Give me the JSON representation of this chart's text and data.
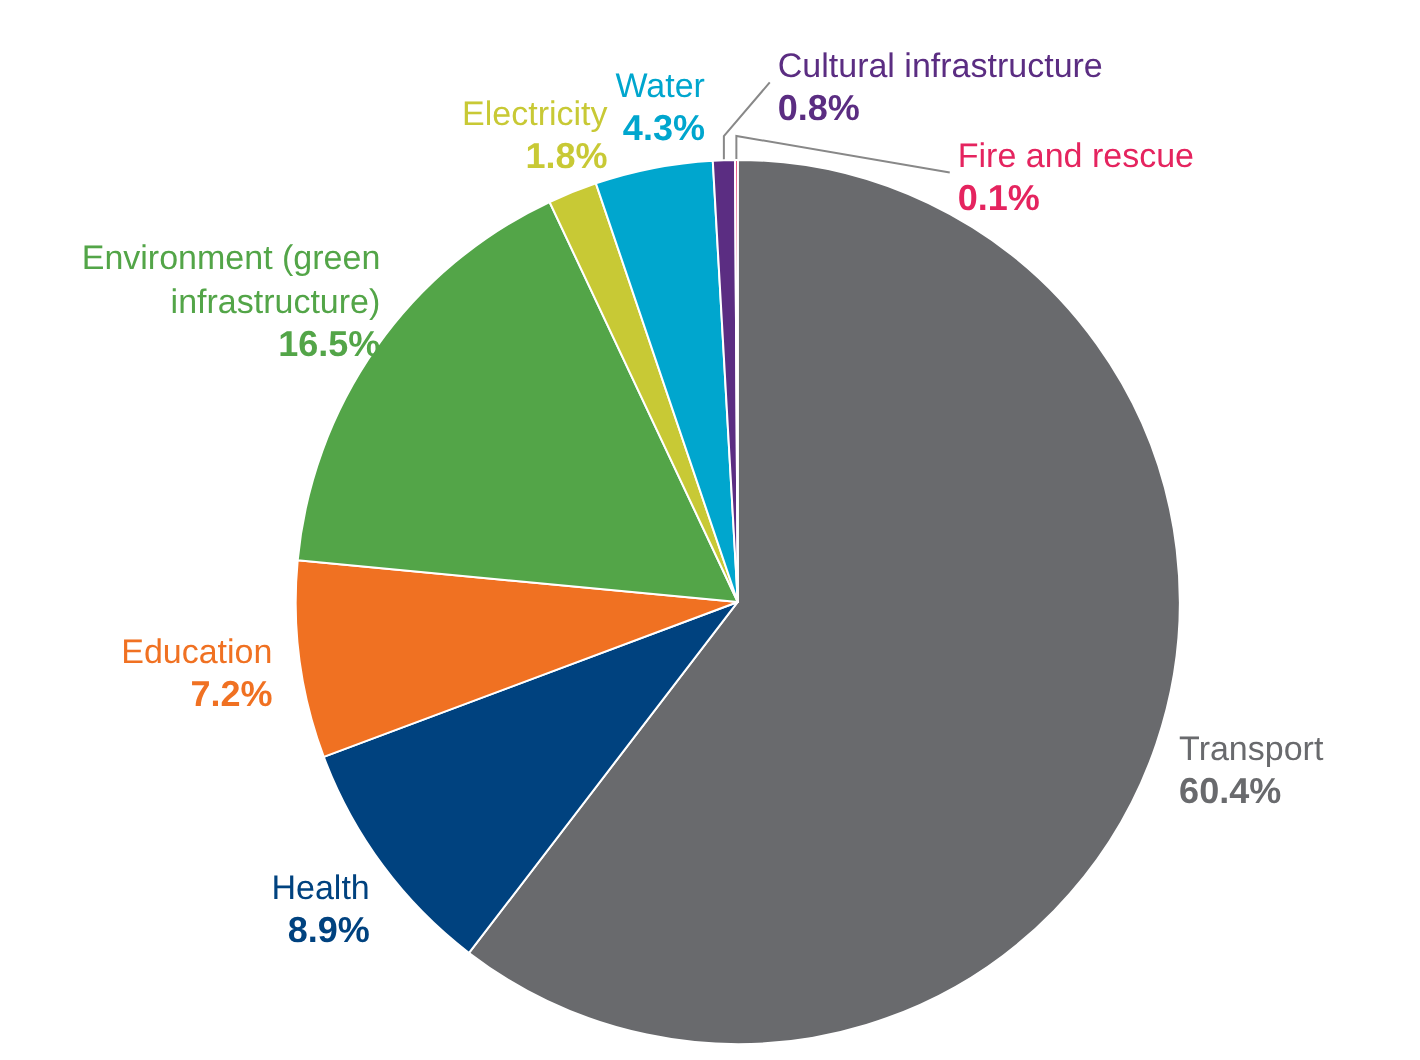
{
  "chart_data": {
    "type": "pie",
    "categories": [
      "Transport",
      "Health",
      "Education",
      "Environment (green infrastructure)",
      "Electricity",
      "Water",
      "Cultural infrastructure",
      "Fire and rescue"
    ],
    "values": [
      60.4,
      8.9,
      7.2,
      16.5,
      1.8,
      4.3,
      0.8,
      0.1
    ],
    "colors": [
      "#696a6d",
      "#00427f",
      "#f07122",
      "#53a548",
      "#c8c935",
      "#00a6ce",
      "#5b2d82",
      "#e5245f"
    ],
    "value_labels": [
      "60.4%",
      "8.9%",
      "7.2%",
      "16.5%",
      "1.8%",
      "4.3%",
      "0.8%",
      "0.1%"
    ],
    "legend": false
  }
}
